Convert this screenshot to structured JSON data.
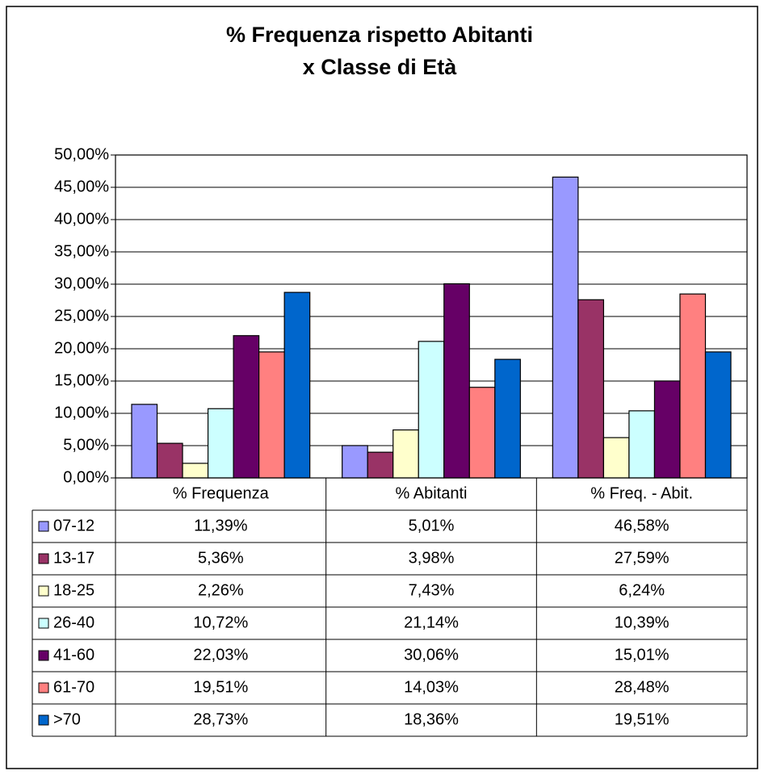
{
  "chart_data": {
    "type": "bar",
    "title": [
      "% Frequenza rispetto Abitanti",
      "x Classe di Età"
    ],
    "categories": [
      "% Frequenza",
      "% Abitanti",
      "% Freq. - Abit."
    ],
    "series": [
      {
        "name": "07-12",
        "color": "#9999ff",
        "values": [
          11.39,
          5.01,
          46.58
        ],
        "value_labels": [
          "11,39%",
          "5,01%",
          "46,58%"
        ]
      },
      {
        "name": "13-17",
        "color": "#993366",
        "values": [
          5.36,
          3.98,
          27.59
        ],
        "value_labels": [
          "5,36%",
          "3,98%",
          "27,59%"
        ]
      },
      {
        "name": "18-25",
        "color": "#ffffcc",
        "values": [
          2.26,
          7.43,
          6.24
        ],
        "value_labels": [
          "2,26%",
          "7,43%",
          "6,24%"
        ]
      },
      {
        "name": "26-40",
        "color": "#ccffff",
        "values": [
          10.72,
          21.14,
          10.39
        ],
        "value_labels": [
          "10,72%",
          "21,14%",
          "10,39%"
        ]
      },
      {
        "name": "41-60",
        "color": "#660066",
        "values": [
          22.03,
          30.06,
          15.01
        ],
        "value_labels": [
          "22,03%",
          "30,06%",
          "15,01%"
        ]
      },
      {
        "name": "61-70",
        "color": "#ff8080",
        "values": [
          19.51,
          14.03,
          28.48
        ],
        "value_labels": [
          "19,51%",
          "14,03%",
          "28,48%"
        ]
      },
      {
        "name": ">70",
        "color": "#0066cc",
        "values": [
          28.73,
          18.36,
          19.51
        ],
        "value_labels": [
          "28,73%",
          "18,36%",
          "19,51%"
        ]
      }
    ],
    "ylim": [
      0,
      50
    ],
    "yticks": [
      {
        "value": 0,
        "label": "0,00%"
      },
      {
        "value": 5,
        "label": "5,00%"
      },
      {
        "value": 10,
        "label": "10,00%"
      },
      {
        "value": 15,
        "label": "15,00%"
      },
      {
        "value": 20,
        "label": "20,00%"
      },
      {
        "value": 25,
        "label": "25,00%"
      },
      {
        "value": 30,
        "label": "30,00%"
      },
      {
        "value": 35,
        "label": "35,00%"
      },
      {
        "value": 40,
        "label": "40,00%"
      },
      {
        "value": 45,
        "label": "45,00%"
      },
      {
        "value": 50,
        "label": "50,00%"
      }
    ],
    "grid": true
  }
}
